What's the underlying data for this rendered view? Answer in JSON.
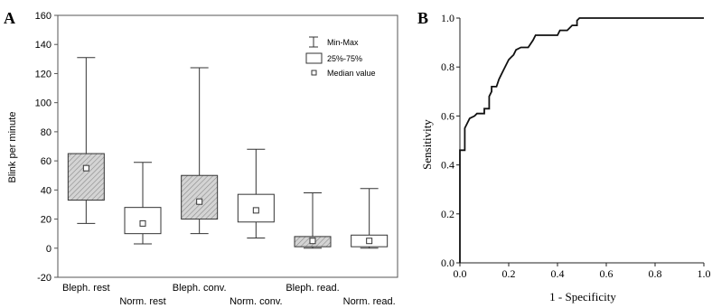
{
  "chart_data": [
    {
      "type": "box",
      "panel_label": "A",
      "ylabel": "Blink per minute",
      "ylim": [
        -20,
        160
      ],
      "yticks": [
        -20,
        0,
        20,
        40,
        60,
        80,
        100,
        120,
        140,
        160
      ],
      "grid": false,
      "legend": {
        "placement": "top-right",
        "entries": [
          "Min-Max",
          "25%-75%",
          "Median value"
        ]
      },
      "categories": [
        "Bleph. rest",
        "Norm. rest",
        "Bleph. conv.",
        "Norm. conv.",
        "Bleph. read.",
        "Norm. read."
      ],
      "boxes": [
        {
          "label": "Bleph. rest",
          "min": 17,
          "q1": 33,
          "median": 55,
          "q3": 65,
          "max": 131,
          "fill": "hatched"
        },
        {
          "label": "Norm. rest",
          "min": 3,
          "q1": 10,
          "median": 17,
          "q3": 28,
          "max": 59,
          "fill": "white"
        },
        {
          "label": "Bleph. conv.",
          "min": 10,
          "q1": 20,
          "median": 32,
          "q3": 50,
          "max": 124,
          "fill": "hatched"
        },
        {
          "label": "Norm. conv.",
          "min": 7,
          "q1": 18,
          "median": 26,
          "q3": 37,
          "max": 68,
          "fill": "white"
        },
        {
          "label": "Bleph. read.",
          "min": 0,
          "q1": 1,
          "median": 5,
          "q3": 8,
          "max": 38,
          "fill": "hatched"
        },
        {
          "label": "Norm. read.",
          "min": 0,
          "q1": 1,
          "median": 5,
          "q3": 9,
          "max": 41,
          "fill": "white"
        }
      ]
    },
    {
      "type": "line",
      "panel_label": "B",
      "xlabel": "1 - Specificity",
      "ylabel": "Sensitivity",
      "xlim": [
        0,
        1
      ],
      "ylim": [
        0,
        1
      ],
      "xticks": [
        "0.0",
        "0.2",
        "0.4",
        "0.6",
        "0.8",
        "1.0"
      ],
      "yticks": [
        "0.0",
        "0.2",
        "0.4",
        "0.6",
        "0.8",
        "1.0"
      ],
      "grid": false,
      "series": [
        {
          "points": [
            [
              0.0,
              0.0
            ],
            [
              0.0,
              0.46
            ],
            [
              0.02,
              0.46
            ],
            [
              0.02,
              0.55
            ],
            [
              0.03,
              0.57
            ],
            [
              0.04,
              0.59
            ],
            [
              0.06,
              0.6
            ],
            [
              0.07,
              0.61
            ],
            [
              0.1,
              0.61
            ],
            [
              0.1,
              0.63
            ],
            [
              0.12,
              0.63
            ],
            [
              0.12,
              0.68
            ],
            [
              0.13,
              0.7
            ],
            [
              0.13,
              0.72
            ],
            [
              0.15,
              0.72
            ],
            [
              0.16,
              0.75
            ],
            [
              0.17,
              0.77
            ],
            [
              0.18,
              0.79
            ],
            [
              0.19,
              0.81
            ],
            [
              0.2,
              0.83
            ],
            [
              0.21,
              0.84
            ],
            [
              0.22,
              0.85
            ],
            [
              0.23,
              0.87
            ],
            [
              0.25,
              0.88
            ],
            [
              0.28,
              0.88
            ],
            [
              0.3,
              0.91
            ],
            [
              0.31,
              0.93
            ],
            [
              0.34,
              0.93
            ],
            [
              0.4,
              0.93
            ],
            [
              0.41,
              0.95
            ],
            [
              0.44,
              0.95
            ],
            [
              0.46,
              0.97
            ],
            [
              0.48,
              0.97
            ],
            [
              0.48,
              0.99
            ],
            [
              0.49,
              1.0
            ],
            [
              1.0,
              1.0
            ]
          ]
        }
      ]
    }
  ]
}
